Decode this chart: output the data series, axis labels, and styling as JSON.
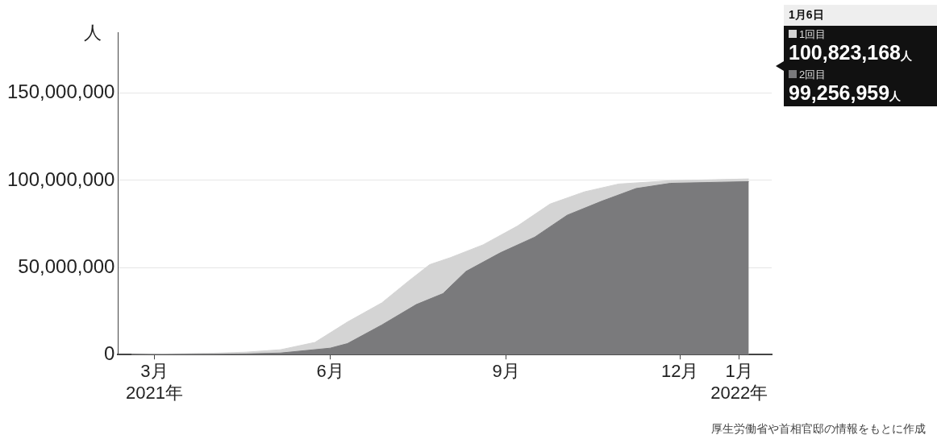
{
  "chart_data": {
    "type": "area",
    "ylabel": "人",
    "annotations": [
      "1月6日",
      "100,823,168人",
      "99,256,959人",
      "厚生労働省や首相官邸の情報をもとに作成"
    ],
    "series": [
      {
        "name": "1回目",
        "color": "#d4d4d4",
        "x": [
          "2021-02-17",
          "2021-04-01",
          "2021-04-18",
          "2021-05-06",
          "2021-05-24",
          "2021-06-10",
          "2021-06-28",
          "2021-07-12",
          "2021-07-23",
          "2021-08-03",
          "2021-08-20",
          "2021-09-07",
          "2021-09-24",
          "2021-10-12",
          "2021-10-30",
          "2021-11-26",
          "2022-01-06"
        ],
        "values": [
          0,
          800000,
          1400000,
          2800000,
          7000000,
          18700000,
          29700000,
          42200000,
          51600000,
          55700000,
          63000000,
          73800000,
          86400000,
          93400000,
          97900000,
          99800000,
          100823168
        ]
      },
      {
        "name": "2回目",
        "color": "#7a7a7c",
        "x": [
          "2021-02-17",
          "2021-04-01",
          "2021-04-18",
          "2021-05-06",
          "2021-06-01",
          "2021-06-10",
          "2021-06-28",
          "2021-07-16",
          "2021-07-30",
          "2021-08-11",
          "2021-08-29",
          "2021-09-16",
          "2021-10-03",
          "2021-10-21",
          "2021-11-08",
          "2021-11-26",
          "2022-01-06"
        ],
        "values": [
          0,
          200000,
          400000,
          900000,
          3700000,
          6300000,
          17000000,
          28700000,
          35000000,
          47700000,
          58400000,
          67400000,
          80000000,
          88000000,
          95300000,
          98300000,
          99256959
        ]
      }
    ],
    "xlim": [
      "2021-02-10",
      "2022-01-18"
    ],
    "xticks": [
      {
        "value": "2021-03-01",
        "label": "3月\n2021年"
      },
      {
        "value": "2021-06-01",
        "label": "6月"
      },
      {
        "value": "2021-09-01",
        "label": "9月"
      },
      {
        "value": "2021-12-01",
        "label": "12月"
      },
      {
        "value": "2022-01-01",
        "label": "1月\n2022年"
      }
    ],
    "ylim": [
      0,
      185000000
    ],
    "yticks": [
      {
        "value": 0,
        "label": "0"
      },
      {
        "value": 50000000,
        "label": "50,000,000"
      },
      {
        "value": 100000000,
        "label": "100,000,000"
      },
      {
        "value": 150000000,
        "label": "150,000,000"
      }
    ],
    "grid": "y",
    "legend": "top right"
  }
}
